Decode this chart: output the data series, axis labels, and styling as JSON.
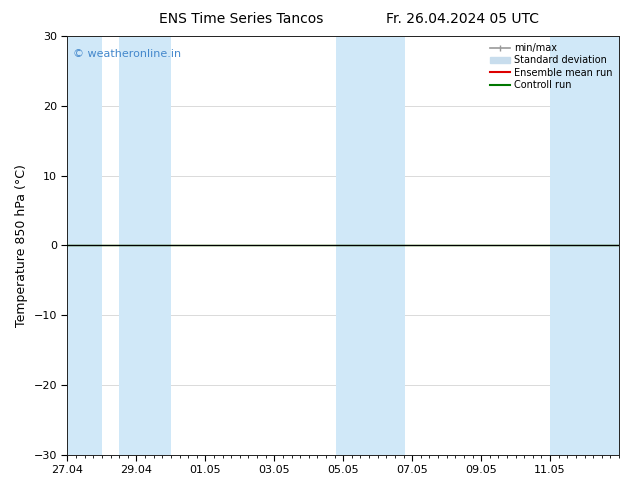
{
  "title_left": "ENS Time Series Tancos",
  "title_right": "Fr. 26.04.2024 05 UTC",
  "ylabel": "Temperature 850 hPa (°C)",
  "ylim": [
    -30,
    30
  ],
  "yticks": [
    -30,
    -20,
    -10,
    0,
    10,
    20,
    30
  ],
  "xtick_labels": [
    "27.04",
    "29.04",
    "01.05",
    "03.05",
    "05.05",
    "07.05",
    "09.05",
    "11.05"
  ],
  "xtick_positions": [
    0,
    2,
    4,
    6,
    8,
    10,
    12,
    14
  ],
  "xlim": [
    0,
    16
  ],
  "watermark": "© weatheronline.in",
  "watermark_color": "#4488cc",
  "background_color": "#ffffff",
  "plot_bg_color": "#ffffff",
  "band_color": "#d0e8f8",
  "bands": [
    [
      0.0,
      1.0
    ],
    [
      1.5,
      3.0
    ],
    [
      7.8,
      9.8
    ],
    [
      14.0,
      16.0
    ]
  ],
  "control_run_color": "#007700",
  "ensemble_mean_color": "#dd0000",
  "legend_minmax_color": "#999999",
  "legend_stddev_color": "#c8dded",
  "title_fontsize": 10,
  "label_fontsize": 9,
  "tick_fontsize": 8,
  "watermark_fontsize": 8
}
